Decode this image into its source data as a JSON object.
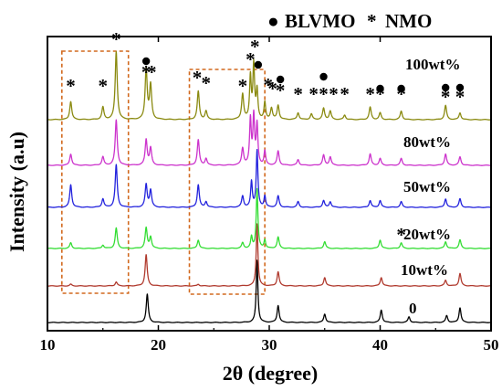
{
  "chart_data": {
    "type": "line",
    "title": "",
    "xlabel": "2θ (degree)",
    "ylabel": "Intensity (a.u)",
    "xlim": [
      10,
      50
    ],
    "x_ticks": [
      10,
      20,
      30,
      40,
      50
    ],
    "y_ticks_shown": false,
    "grid": false,
    "legend": {
      "placement": "top-right",
      "entries": [
        {
          "symbol": "●",
          "label": "BLVMO"
        },
        {
          "symbol": "*",
          "label": "NMO"
        }
      ]
    },
    "series": [
      {
        "name": "0",
        "color": "#000000",
        "peaks": [
          [
            19.0,
            0.5
          ],
          [
            28.9,
            1.1
          ],
          [
            30.8,
            0.3
          ],
          [
            35.0,
            0.15
          ],
          [
            40.1,
            0.22
          ],
          [
            42.6,
            0.1
          ],
          [
            46.0,
            0.12
          ],
          [
            47.2,
            0.26
          ]
        ]
      },
      {
        "name": "10wt%",
        "color": "#b03a2e",
        "peaks": [
          [
            12.1,
            0.03
          ],
          [
            16.2,
            0.07
          ],
          [
            18.9,
            0.55
          ],
          [
            23.6,
            0.03
          ],
          [
            28.9,
            1.1
          ],
          [
            30.8,
            0.25
          ],
          [
            35.0,
            0.15
          ],
          [
            40.1,
            0.15
          ],
          [
            45.9,
            0.1
          ],
          [
            47.2,
            0.22
          ]
        ]
      },
      {
        "name": "20wt%",
        "color": "#33dd33",
        "peaks": [
          [
            12.1,
            0.1
          ],
          [
            15.0,
            0.06
          ],
          [
            16.2,
            0.36
          ],
          [
            18.9,
            0.36
          ],
          [
            19.3,
            0.2
          ],
          [
            23.6,
            0.15
          ],
          [
            27.6,
            0.1
          ],
          [
            28.4,
            0.2
          ],
          [
            28.9,
            1.05
          ],
          [
            29.6,
            0.15
          ],
          [
            30.8,
            0.2
          ],
          [
            35.0,
            0.12
          ],
          [
            40.0,
            0.15
          ],
          [
            41.9,
            0.1
          ],
          [
            45.9,
            0.12
          ],
          [
            47.2,
            0.15
          ]
        ]
      },
      {
        "name": "50wt%",
        "color": "#2222dd",
        "peaks": [
          [
            12.1,
            0.4
          ],
          [
            15.0,
            0.15
          ],
          [
            16.2,
            0.75
          ],
          [
            18.9,
            0.4
          ],
          [
            19.3,
            0.3
          ],
          [
            23.6,
            0.4
          ],
          [
            24.3,
            0.1
          ],
          [
            27.6,
            0.2
          ],
          [
            28.4,
            0.45
          ],
          [
            28.9,
            1.0
          ],
          [
            29.6,
            0.2
          ],
          [
            30.8,
            0.2
          ],
          [
            32.6,
            0.1
          ],
          [
            34.9,
            0.12
          ],
          [
            35.5,
            0.1
          ],
          [
            39.1,
            0.12
          ],
          [
            40.0,
            0.12
          ],
          [
            41.9,
            0.1
          ],
          [
            45.9,
            0.15
          ],
          [
            47.2,
            0.15
          ]
        ]
      },
      {
        "name": "80wt%",
        "color": "#cc33cc",
        "peaks": [
          [
            12.1,
            0.2
          ],
          [
            15.0,
            0.15
          ],
          [
            16.2,
            0.8
          ],
          [
            18.9,
            0.45
          ],
          [
            19.3,
            0.3
          ],
          [
            23.6,
            0.45
          ],
          [
            24.3,
            0.12
          ],
          [
            27.6,
            0.3
          ],
          [
            28.3,
            0.8
          ],
          [
            28.6,
            0.85
          ],
          [
            28.9,
            0.7
          ],
          [
            29.6,
            0.25
          ],
          [
            30.8,
            0.25
          ],
          [
            32.6,
            0.1
          ],
          [
            34.9,
            0.18
          ],
          [
            35.5,
            0.15
          ],
          [
            39.1,
            0.2
          ],
          [
            40.0,
            0.12
          ],
          [
            41.9,
            0.12
          ],
          [
            45.9,
            0.2
          ],
          [
            47.2,
            0.15
          ]
        ]
      },
      {
        "name": "100wt%",
        "color": "#8a8a10",
        "peaks": [
          [
            12.1,
            0.32
          ],
          [
            15.0,
            0.22
          ],
          [
            16.2,
            1.2
          ],
          [
            18.9,
            0.9
          ],
          [
            19.3,
            0.6
          ],
          [
            23.6,
            0.5
          ],
          [
            24.3,
            0.15
          ],
          [
            27.6,
            0.45
          ],
          [
            28.3,
            0.75
          ],
          [
            28.6,
            0.95
          ],
          [
            28.9,
            0.5
          ],
          [
            29.6,
            0.3
          ],
          [
            30.2,
            0.2
          ],
          [
            30.8,
            0.25
          ],
          [
            32.6,
            0.12
          ],
          [
            33.8,
            0.1
          ],
          [
            34.9,
            0.2
          ],
          [
            35.5,
            0.15
          ],
          [
            36.8,
            0.08
          ],
          [
            39.1,
            0.22
          ],
          [
            40.0,
            0.12
          ],
          [
            41.9,
            0.15
          ],
          [
            45.9,
            0.25
          ],
          [
            47.2,
            0.12
          ]
        ]
      }
    ],
    "annotations": {
      "star_markers": [
        [
          12.1,
          "100wt%"
        ],
        [
          15.0,
          "100wt%"
        ],
        [
          16.2,
          "100wt%"
        ],
        [
          18.9,
          "100wt%"
        ],
        [
          19.4,
          "100wt%"
        ],
        [
          23.5,
          "100wt%"
        ],
        [
          24.3,
          "100wt%"
        ],
        [
          27.6,
          "100wt%"
        ],
        [
          28.3,
          "100wt%"
        ],
        [
          28.7,
          "100wt%"
        ],
        [
          29.9,
          "100wt%"
        ],
        [
          30.3,
          "100wt%"
        ],
        [
          31.0,
          "100wt%"
        ],
        [
          32.6,
          "100wt%"
        ],
        [
          34.0,
          "100wt%"
        ],
        [
          34.9,
          "100wt%"
        ],
        [
          35.8,
          "100wt%"
        ],
        [
          36.8,
          "100wt%"
        ],
        [
          39.1,
          "100wt%"
        ],
        [
          40.0,
          "100wt%"
        ],
        [
          41.9,
          "100wt%"
        ],
        [
          45.9,
          "100wt%"
        ],
        [
          47.2,
          "100wt%"
        ],
        [
          41.9,
          "20wt%"
        ]
      ],
      "dot_markers": [
        [
          18.9,
          "100wt%"
        ],
        [
          29.0,
          "100wt%"
        ],
        [
          31.0,
          "100wt%"
        ],
        [
          34.9,
          "100wt%"
        ],
        [
          40.0,
          "100wt%"
        ],
        [
          41.9,
          "100wt%"
        ],
        [
          45.9,
          "100wt%"
        ],
        [
          47.2,
          "100wt%"
        ]
      ],
      "dashed_boxes": [
        {
          "x_range": [
            11.3,
            17.3
          ],
          "color": "#d2691e"
        },
        {
          "x_range": [
            22.8,
            29.6
          ],
          "color": "#d2691e"
        }
      ]
    }
  }
}
